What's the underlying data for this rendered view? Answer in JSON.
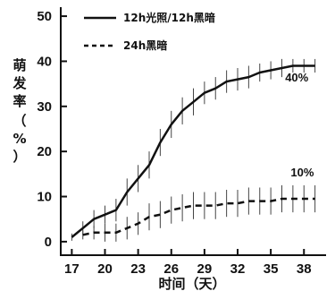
{
  "chart_data": {
    "type": "line",
    "xlabel": "时间（天）",
    "ylabel_chars": [
      "萌",
      "发",
      "率",
      "（",
      "%",
      "）"
    ],
    "xlim": [
      16,
      40
    ],
    "ylim": [
      -3,
      52
    ],
    "xticks": [
      17,
      20,
      23,
      26,
      29,
      32,
      35,
      38
    ],
    "yticks": [
      0,
      10,
      20,
      30,
      40,
      50
    ],
    "legend_position": "top-left",
    "grid": false,
    "series": [
      {
        "name": "12h光照/12h黑暗",
        "style": "solid",
        "x": [
          17,
          18,
          19,
          20,
          21,
          22,
          23,
          24,
          25,
          26,
          27,
          28,
          29,
          30,
          31,
          32,
          33,
          34,
          35,
          36,
          37,
          38,
          39
        ],
        "y": [
          1,
          3,
          5,
          6,
          7,
          11,
          14,
          17,
          22,
          26,
          29,
          31,
          33,
          34,
          35.5,
          36,
          36.5,
          37.5,
          38,
          38.5,
          39,
          39,
          39
        ],
        "err": [
          0.8,
          1.5,
          2,
          2,
          2.5,
          3,
          3,
          3,
          3,
          3,
          3,
          3,
          2.5,
          2.5,
          2.5,
          2.5,
          2.5,
          2,
          2,
          2,
          1.5,
          1.5,
          1.5
        ]
      },
      {
        "name": "24h黑暗",
        "style": "dashed",
        "x": [
          18,
          19,
          20,
          21,
          22,
          23,
          24,
          25,
          26,
          27,
          28,
          29,
          30,
          31,
          32,
          33,
          34,
          35,
          36,
          37,
          38,
          39
        ],
        "y": [
          1.5,
          2,
          2,
          2,
          3,
          4,
          5.5,
          6,
          7,
          7.5,
          8,
          8,
          8,
          8.5,
          8.5,
          9,
          9,
          9,
          9.5,
          9.5,
          9.5,
          9.5
        ],
        "err": [
          1,
          1.5,
          2,
          2,
          2.5,
          2.5,
          3,
          3,
          3,
          3,
          3,
          3,
          3,
          3,
          3,
          3,
          3,
          3,
          3,
          3,
          3,
          3
        ]
      }
    ],
    "annotations": [
      {
        "text": "40%",
        "x": 36.3,
        "y": 35.5
      },
      {
        "text": "10%",
        "x": 36.8,
        "y": 14.5
      }
    ]
  }
}
